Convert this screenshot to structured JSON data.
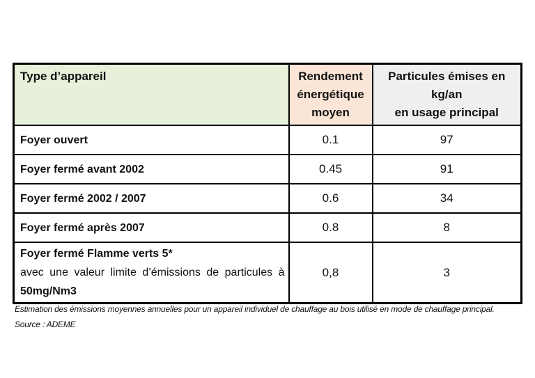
{
  "table": {
    "header": {
      "type": "Type d’appareil",
      "rendement": "Rendement énergétique moyen",
      "particules_line1": "Particules émises en kg/an",
      "particules_line2": "en usage principal"
    },
    "rows": [
      {
        "type": "Foyer ouvert",
        "rendement": "0.1",
        "particules": "97"
      },
      {
        "type": "Foyer fermé avant 2002",
        "rendement": "0.45",
        "particules": "91"
      },
      {
        "type": "Foyer fermé 2002 / 2007",
        "rendement": "0.6",
        "particules": "34"
      },
      {
        "type": "Foyer fermé après 2007",
        "rendement": "0.8",
        "particules": "8"
      },
      {
        "type": "Foyer fermé Flamme verts 5*",
        "type_detail": "avec une valeur limite d’émissions de particules à",
        "type_detail2": "50mg/Nm3",
        "rendement": "0,8",
        "particules": "3"
      }
    ]
  },
  "notes": {
    "line1": "Estimation des émissions moyennes annuelles pour un appareil individuel de chauffage au bois utilisé en mode de chauffage principal.",
    "line2": "Source : ADEME"
  },
  "colors": {
    "header_type_bg": "#e6f0da",
    "header_rendement_bg": "#fbe5d6",
    "header_particules_bg": "#efefef",
    "border": "#000000",
    "text": "#121212"
  },
  "chart_data": {
    "type": "table",
    "columns": [
      "Type d’appareil",
      "Rendement énergétique moyen",
      "Particules émises en kg/an en usage principal"
    ],
    "rows": [
      [
        "Foyer ouvert",
        0.1,
        97
      ],
      [
        "Foyer fermé avant 2002",
        0.45,
        91
      ],
      [
        "Foyer fermé 2002 / 2007",
        0.6,
        34
      ],
      [
        "Foyer fermé après 2007",
        0.8,
        8
      ],
      [
        "Foyer fermé Flamme verts 5* avec une valeur limite d’émissions de particules à 50mg/Nm3",
        0.8,
        3
      ]
    ],
    "caption": "Estimation des émissions moyennes annuelles pour un appareil individuel de chauffage au bois utilisé en mode de chauffage principal.",
    "source": "ADEME"
  }
}
